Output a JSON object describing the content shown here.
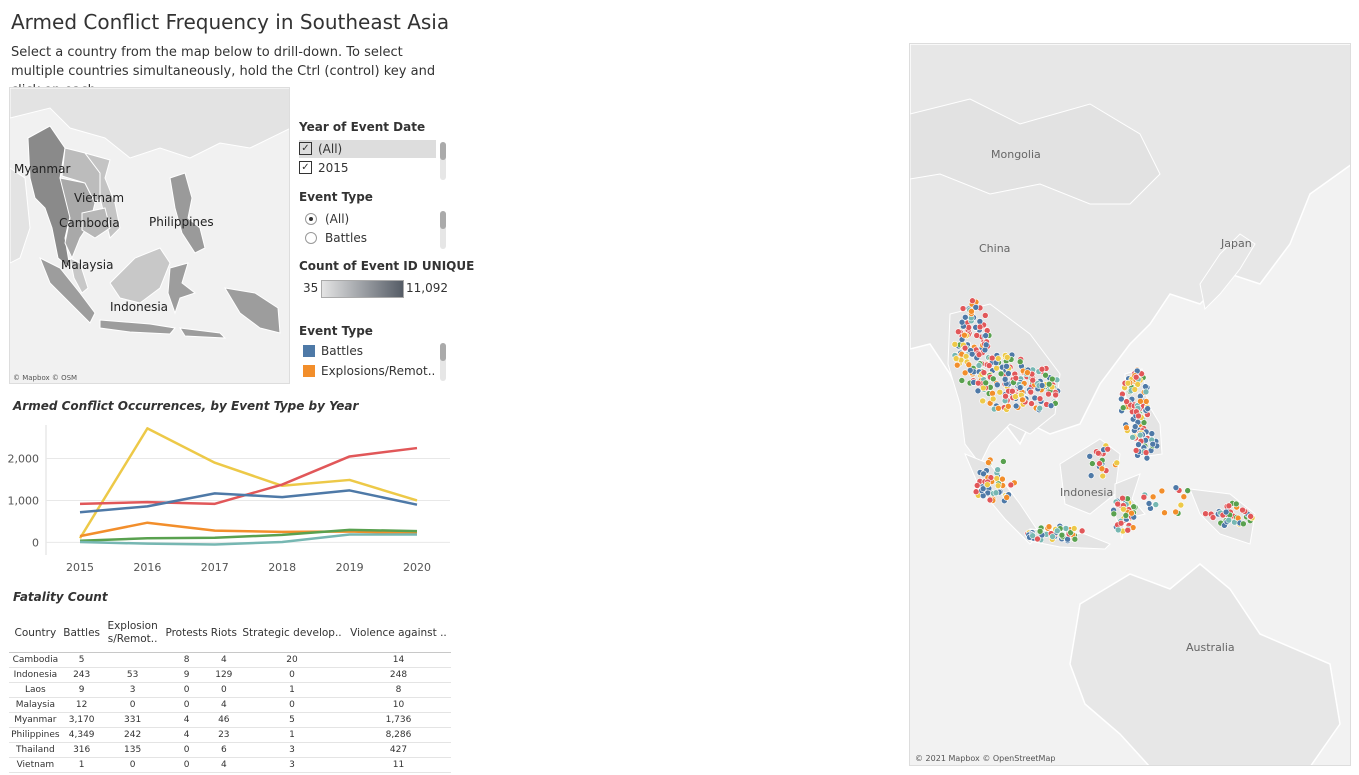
{
  "header": {
    "title": "Armed Conflict Frequency in Southeast Asia",
    "subtitle": "Select a country from the map below to drill-down. To select multiple countries simultaneously, hold the Ctrl (control) key and click on each .."
  },
  "mini_map": {
    "labels": [
      "Myanmar",
      "Vietnam",
      "Cambodia",
      "Philippines",
      "Malaysia",
      "Indonesia"
    ],
    "credit": "© Mapbox © OSM"
  },
  "filters": {
    "year": {
      "title": "Year of Event Date",
      "items": [
        "(All)",
        "2015"
      ]
    },
    "event_type_radio": {
      "title": "Event Type",
      "items": [
        "(All)",
        "Battles"
      ]
    },
    "count_legend": {
      "title": "Count of Event ID UNIQUE",
      "min": "35",
      "max": "11,092"
    },
    "event_type_legend": {
      "title": "Event Type",
      "items": [
        {
          "label": "Battles",
          "color": "#4e79a7"
        },
        {
          "label": "Explosions/Remot..",
          "color": "#f28e2b"
        }
      ]
    }
  },
  "line_chart": {
    "section_title": "Armed Conflict Occurrences, by Event Type by Year"
  },
  "chart_data": {
    "type": "line",
    "title": "Armed Conflict Occurrences, by Event Type by Year",
    "x": [
      2015,
      2016,
      2017,
      2018,
      2019,
      2020
    ],
    "x_ticks": [
      "2015",
      "2016",
      "2017",
      "2018",
      "2019",
      "2020"
    ],
    "y_ticks": [
      "0",
      "1,000",
      "2,000"
    ],
    "ylim": [
      -300,
      2800
    ],
    "series": [
      {
        "color": "#edc948",
        "values": [
          100,
          2720,
          1900,
          1350,
          1490,
          1000
        ]
      },
      {
        "color": "#e15759",
        "values": [
          920,
          960,
          920,
          1380,
          2050,
          2250
        ]
      },
      {
        "color": "#4e79a7",
        "values": [
          720,
          860,
          1170,
          1080,
          1240,
          900
        ]
      },
      {
        "color": "#f28e2b",
        "values": [
          150,
          470,
          280,
          250,
          260,
          220
        ]
      },
      {
        "color": "#59a14f",
        "values": [
          40,
          100,
          110,
          180,
          300,
          270
        ]
      },
      {
        "color": "#76b7b2",
        "values": [
          10,
          -30,
          -50,
          10,
          190,
          190
        ]
      }
    ],
    "grid": true
  },
  "fatality_table": {
    "section_title": "Fatality Count",
    "headers": [
      "Country",
      "Battles",
      "Explosion s/Remot..",
      "Protests",
      "Riots",
      "Strategic develop..",
      "Violence against .."
    ],
    "rows": [
      [
        "Cambodia",
        "5",
        "",
        "8",
        "4",
        "20",
        "14"
      ],
      [
        "Indonesia",
        "243",
        "53",
        "9",
        "129",
        "0",
        "248"
      ],
      [
        "Laos",
        "9",
        "3",
        "0",
        "0",
        "1",
        "8"
      ],
      [
        "Malaysia",
        "12",
        "0",
        "0",
        "4",
        "0",
        "10"
      ],
      [
        "Myanmar",
        "3,170",
        "331",
        "4",
        "46",
        "5",
        "1,736"
      ],
      [
        "Philippines",
        "4,349",
        "242",
        "4",
        "23",
        "1",
        "8,286"
      ],
      [
        "Thailand",
        "316",
        "135",
        "0",
        "6",
        "3",
        "427"
      ],
      [
        "Vietnam",
        "1",
        "0",
        "0",
        "4",
        "3",
        "11"
      ]
    ]
  },
  "big_map": {
    "labels": [
      "Mongolia",
      "China",
      "Japan",
      "Indonesia",
      "Australia"
    ],
    "credit": "© 2021 Mapbox © OpenStreetMap"
  }
}
